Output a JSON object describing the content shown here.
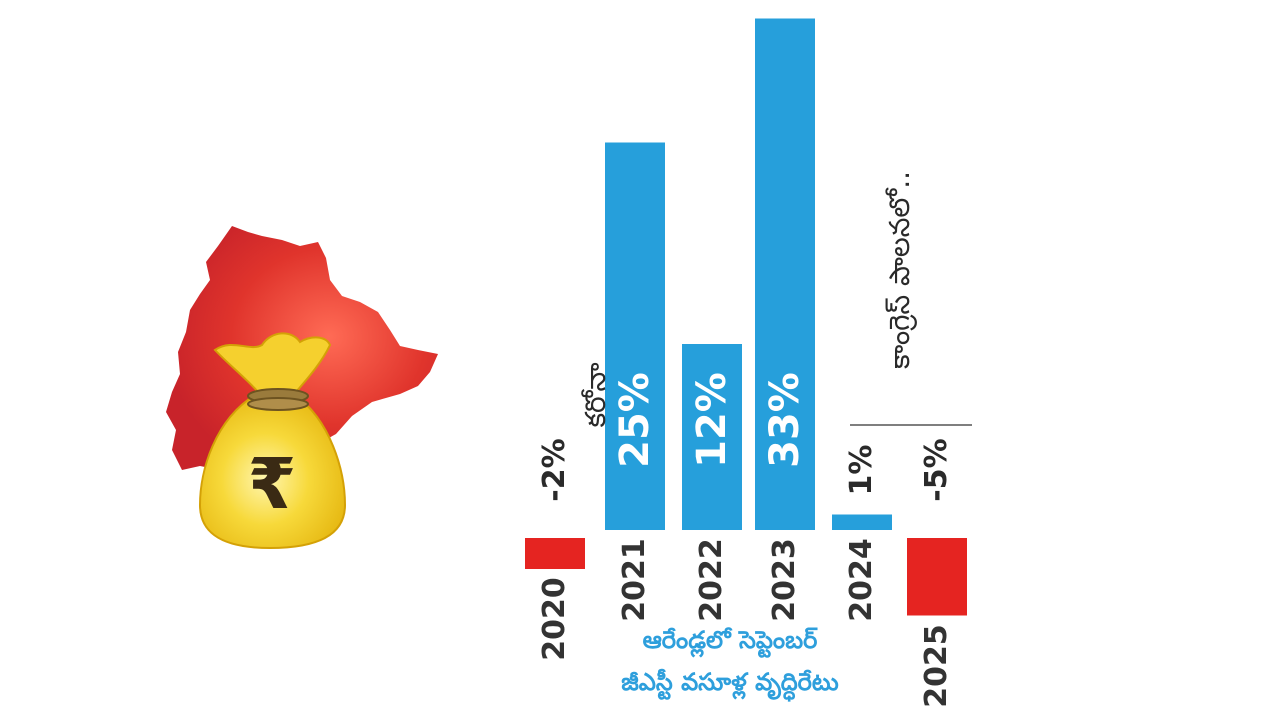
{
  "colors": {
    "positive": "#269fdb",
    "negative": "#e52421",
    "map": "#d8272a",
    "bag": "#f1c40f"
  },
  "illustration": {
    "map_label": "telangana-map",
    "bag_label": "money-bag",
    "currency_symbol": "₹"
  },
  "chart_data": {
    "type": "bar",
    "categories": [
      "2020",
      "2021",
      "2022",
      "2023",
      "2024",
      "2025"
    ],
    "values": [
      -2,
      25,
      12,
      33,
      1,
      -5
    ],
    "value_labels": [
      "-2%",
      "25%",
      "12%",
      "33%",
      "1%",
      "-5%"
    ],
    "title": "ఆరేండ్లలో సెప్టెంబర్ జీఎస్టీ వసూళ్ల వృద్ధిరేటు",
    "title_lines": [
      "ఆరేండ్లలో సెప్టెంబర్",
      "జీఎస్టీ వసూళ్ల వృద్ధిరేటు"
    ],
    "annotations": [
      {
        "category": "2020",
        "text": "కరోనా"
      },
      {
        "category": "2025",
        "text": "కాంగ్రెస్ పాలనలో.."
      }
    ],
    "xlabel": "",
    "ylabel": "",
    "ylim": [
      -5,
      33
    ],
    "grid": false,
    "legend": "none"
  }
}
